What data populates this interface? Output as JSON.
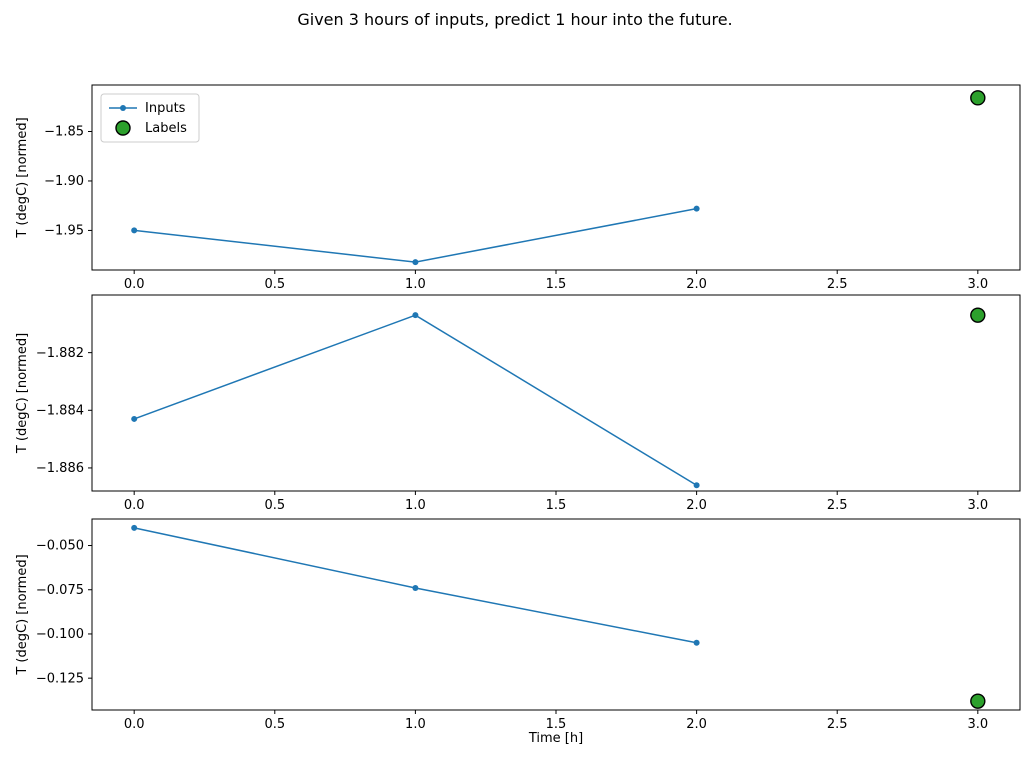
{
  "figure": {
    "title": "Given 3 hours of inputs, predict 1 hour into the future.",
    "colors": {
      "inputs_line": "#1f77b4",
      "labels_fill": "#2ca02c",
      "labels_edge": "#000000",
      "axis": "#000000",
      "text": "#000000",
      "legend_border": "#cccccc",
      "background": "#ffffff"
    },
    "legend": {
      "position": "upper-left",
      "entries": [
        {
          "label": "Inputs",
          "marker": "line-dot"
        },
        {
          "label": "Labels",
          "marker": "circle"
        }
      ]
    }
  },
  "chart_data": [
    {
      "type": "line",
      "title": "",
      "xlabel": "",
      "ylabel": "T (degC) [normed]",
      "grid": false,
      "legend": true,
      "xlim": [
        -0.15,
        3.15
      ],
      "ylim": [
        -1.99,
        -1.803
      ],
      "xticks": [
        {
          "v": 0.0,
          "label": "0.0"
        },
        {
          "v": 0.5,
          "label": "0.5"
        },
        {
          "v": 1.0,
          "label": "1.0"
        },
        {
          "v": 1.5,
          "label": "1.5"
        },
        {
          "v": 2.0,
          "label": "2.0"
        },
        {
          "v": 2.5,
          "label": "2.5"
        },
        {
          "v": 3.0,
          "label": "3.0"
        }
      ],
      "yticks": [
        {
          "v": -1.85,
          "label": "−1.85"
        },
        {
          "v": -1.9,
          "label": "−1.90"
        },
        {
          "v": -1.95,
          "label": "−1.95"
        }
      ],
      "series": [
        {
          "name": "Inputs",
          "style": "line-dot",
          "x": [
            0,
            1,
            2
          ],
          "values": [
            -1.95,
            -1.982,
            -1.928
          ]
        },
        {
          "name": "Labels",
          "style": "circle",
          "x": [
            3
          ],
          "values": [
            -1.816
          ]
        }
      ]
    },
    {
      "type": "line",
      "title": "",
      "xlabel": "",
      "ylabel": "T (degC) [normed]",
      "grid": false,
      "legend": false,
      "xlim": [
        -0.15,
        3.15
      ],
      "ylim": [
        -1.8868,
        -1.88
      ],
      "xticks": [
        {
          "v": 0.0,
          "label": "0.0"
        },
        {
          "v": 0.5,
          "label": "0.5"
        },
        {
          "v": 1.0,
          "label": "1.0"
        },
        {
          "v": 1.5,
          "label": "1.5"
        },
        {
          "v": 2.0,
          "label": "2.0"
        },
        {
          "v": 2.5,
          "label": "2.5"
        },
        {
          "v": 3.0,
          "label": "3.0"
        }
      ],
      "yticks": [
        {
          "v": -1.882,
          "label": "−1.882"
        },
        {
          "v": -1.884,
          "label": "−1.884"
        },
        {
          "v": -1.886,
          "label": "−1.886"
        }
      ],
      "series": [
        {
          "name": "Inputs",
          "style": "line-dot",
          "x": [
            0,
            1,
            2
          ],
          "values": [
            -1.8843,
            -1.8807,
            -1.8866
          ]
        },
        {
          "name": "Labels",
          "style": "circle",
          "x": [
            3
          ],
          "values": [
            -1.8807
          ]
        }
      ]
    },
    {
      "type": "line",
      "title": "",
      "xlabel": "Time [h]",
      "ylabel": "T (degC) [normed]",
      "grid": false,
      "legend": false,
      "xlim": [
        -0.15,
        3.15
      ],
      "ylim": [
        -0.143,
        -0.035
      ],
      "xticks": [
        {
          "v": 0.0,
          "label": "0.0"
        },
        {
          "v": 0.5,
          "label": "0.5"
        },
        {
          "v": 1.0,
          "label": "1.0"
        },
        {
          "v": 1.5,
          "label": "1.5"
        },
        {
          "v": 2.0,
          "label": "2.0"
        },
        {
          "v": 2.5,
          "label": "2.5"
        },
        {
          "v": 3.0,
          "label": "3.0"
        }
      ],
      "yticks": [
        {
          "v": -0.05,
          "label": "−0.050"
        },
        {
          "v": -0.075,
          "label": "−0.075"
        },
        {
          "v": -0.1,
          "label": "−0.100"
        },
        {
          "v": -0.125,
          "label": "−0.125"
        }
      ],
      "series": [
        {
          "name": "Inputs",
          "style": "line-dot",
          "x": [
            0,
            1,
            2
          ],
          "values": [
            -0.04,
            -0.074,
            -0.105
          ]
        },
        {
          "name": "Labels",
          "style": "circle",
          "x": [
            3
          ],
          "values": [
            -0.138
          ]
        }
      ]
    }
  ]
}
